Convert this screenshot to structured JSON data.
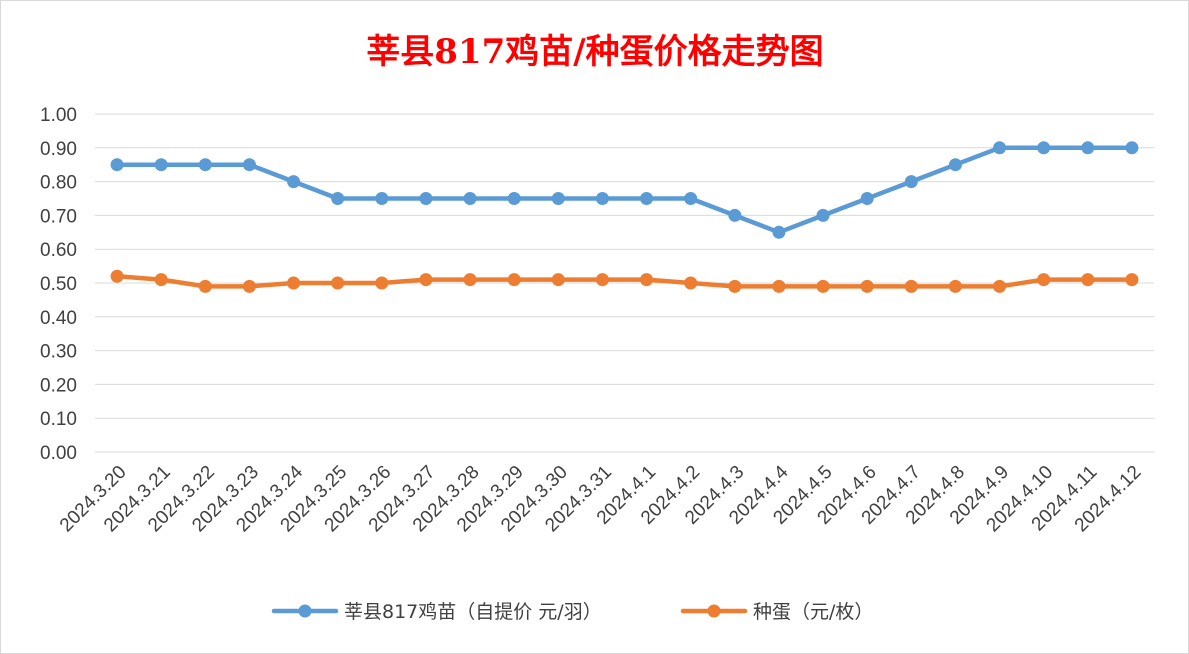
{
  "chart_data": {
    "type": "line",
    "title": "莘县817鸡苗/种蛋价格走势图",
    "categories": [
      "2024.3.20",
      "2024.3.21",
      "2024.3.22",
      "2024.3.23",
      "2024.3.24",
      "2024.3.25",
      "2024.3.26",
      "2024.3.27",
      "2024.3.28",
      "2024.3.29",
      "2024.3.30",
      "2024.3.31",
      "2024.4.1",
      "2024.4.2",
      "2024.4.3",
      "2024.4.4",
      "2024.4.5",
      "2024.4.6",
      "2024.4.7",
      "2024.4.8",
      "2024.4.9",
      "2024.4.10",
      "2024.4.11",
      "2024.4.12"
    ],
    "y_ticks": [
      "0.00",
      "0.10",
      "0.20",
      "0.30",
      "0.40",
      "0.50",
      "0.60",
      "0.70",
      "0.80",
      "0.90",
      "1.00"
    ],
    "ylim": [
      0,
      1.0
    ],
    "grid": true,
    "legend_position": "bottom",
    "series": [
      {
        "name": "莘县817鸡苗（自提价 元/羽）",
        "color": "#5b9bd5",
        "values": [
          0.85,
          0.85,
          0.85,
          0.85,
          0.8,
          0.75,
          0.75,
          0.75,
          0.75,
          0.75,
          0.75,
          0.75,
          0.75,
          0.75,
          0.7,
          0.65,
          0.7,
          0.75,
          0.8,
          0.85,
          0.9,
          0.9,
          0.9,
          0.9
        ]
      },
      {
        "name": "种蛋（元/枚）",
        "color": "#ed7d31",
        "values": [
          0.52,
          0.51,
          0.49,
          0.49,
          0.5,
          0.5,
          0.5,
          0.51,
          0.51,
          0.51,
          0.51,
          0.51,
          0.51,
          0.5,
          0.49,
          0.49,
          0.49,
          0.49,
          0.49,
          0.49,
          0.49,
          0.51,
          0.51,
          0.51
        ]
      }
    ]
  }
}
